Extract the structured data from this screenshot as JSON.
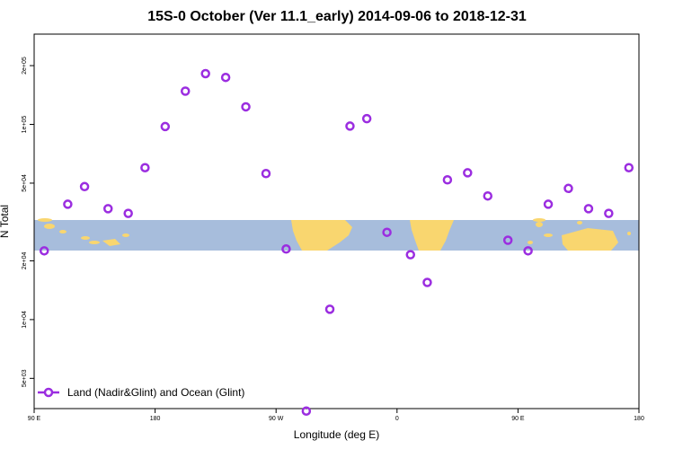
{
  "chart_data": {
    "type": "scatter",
    "title": "15S-0 October (Ver 11.1_early)   2014-09-06 to 2018-12-31",
    "xlabel": "Longitude (deg E)",
    "ylabel": "N Total",
    "y_scale": "log",
    "xlim": [
      90,
      540
    ],
    "ylim": [
      3500,
      290000
    ],
    "x_ticks": [
      {
        "value": 90,
        "label": "90 E"
      },
      {
        "value": 180,
        "label": "180"
      },
      {
        "value": 270,
        "label": "90 W"
      },
      {
        "value": 360,
        "label": "0"
      },
      {
        "value": 450,
        "label": "90 E"
      },
      {
        "value": 540,
        "label": "180"
      }
    ],
    "y_ticks": [
      {
        "value": 5000,
        "label": "5e+03"
      },
      {
        "value": 10000,
        "label": "1e+04"
      },
      {
        "value": 20000,
        "label": "2e+04"
      },
      {
        "value": 50000,
        "label": "5e+04"
      },
      {
        "value": 100000,
        "label": "1e+05"
      },
      {
        "value": 200000,
        "label": "2e+05"
      }
    ],
    "color": "#9b2de0",
    "legend_position": "bottom-left",
    "series": [
      {
        "name": "Land (Nadir&Glint) and Ocean (Glint)",
        "x": [
          97.5,
          115,
          127.5,
          145,
          160,
          172.5,
          187.5,
          202.5,
          217.5,
          232.5,
          247.5,
          262.5,
          277.5,
          292.5,
          310,
          325,
          337.5,
          352.5,
          370,
          382.5,
          397.5,
          412.5,
          427.5,
          442.5,
          457.5,
          472.5,
          487.5,
          502.5,
          517.5,
          532.5
        ],
        "y": [
          22500,
          39000,
          48000,
          37000,
          35000,
          60000,
          97500,
          148000,
          182000,
          174000,
          123000,
          56000,
          23000,
          3400,
          11300,
          98000,
          107000,
          28000,
          21500,
          15500,
          52000,
          56500,
          43000,
          25500,
          22500,
          39000,
          47000,
          37000,
          35000,
          60000
        ]
      }
    ]
  }
}
